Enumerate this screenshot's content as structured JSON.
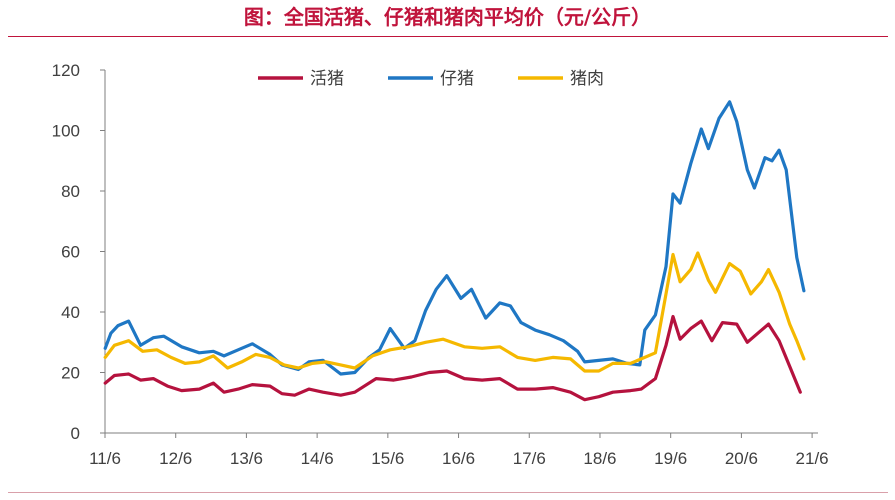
{
  "title": "图：全国活猪、仔猪和猪肉平均价（元/公斤）",
  "colors": {
    "title": "#c0143c",
    "live_hog": "#b5123e",
    "piglet": "#1f77c4",
    "pork": "#f5b800"
  },
  "chart_data": {
    "type": "line",
    "ylim": [
      0,
      120
    ],
    "yticks": [
      "0",
      "20",
      "40",
      "60",
      "80",
      "100",
      "120"
    ],
    "xlim": [
      2011.4167,
      2021.5
    ],
    "xticks": [
      "11/6",
      "12/6",
      "13/6",
      "14/6",
      "15/6",
      "16/6",
      "17/6",
      "18/6",
      "19/6",
      "20/6",
      "21/6"
    ],
    "grid": false,
    "legend_position": "top-center",
    "series": [
      {
        "name": "活猪",
        "color": "#b5123e",
        "points": [
          [
            2011.42,
            16.5
          ],
          [
            2011.55,
            19.0
          ],
          [
            2011.75,
            19.5
          ],
          [
            2011.92,
            17.5
          ],
          [
            2012.1,
            18.0
          ],
          [
            2012.3,
            15.5
          ],
          [
            2012.5,
            14.0
          ],
          [
            2012.75,
            14.5
          ],
          [
            2012.95,
            16.5
          ],
          [
            2013.1,
            13.5
          ],
          [
            2013.3,
            14.5
          ],
          [
            2013.5,
            16.0
          ],
          [
            2013.75,
            15.5
          ],
          [
            2013.92,
            13.0
          ],
          [
            2014.1,
            12.5
          ],
          [
            2014.3,
            14.5
          ],
          [
            2014.5,
            13.5
          ],
          [
            2014.75,
            12.5
          ],
          [
            2014.95,
            13.5
          ],
          [
            2015.25,
            18.0
          ],
          [
            2015.5,
            17.5
          ],
          [
            2015.75,
            18.5
          ],
          [
            2016.0,
            20.0
          ],
          [
            2016.25,
            20.5
          ],
          [
            2016.5,
            18.0
          ],
          [
            2016.75,
            17.5
          ],
          [
            2017.0,
            18.0
          ],
          [
            2017.25,
            14.5
          ],
          [
            2017.5,
            14.5
          ],
          [
            2017.75,
            15.0
          ],
          [
            2018.0,
            13.5
          ],
          [
            2018.2,
            11.0
          ],
          [
            2018.4,
            12.0
          ],
          [
            2018.6,
            13.5
          ],
          [
            2018.85,
            14.0
          ],
          [
            2019.0,
            14.5
          ],
          [
            2019.2,
            18.0
          ],
          [
            2019.35,
            29.0
          ],
          [
            2019.45,
            38.5
          ],
          [
            2019.55,
            31.0
          ],
          [
            2019.7,
            34.5
          ],
          [
            2019.85,
            37.0
          ],
          [
            2020.0,
            30.5
          ],
          [
            2020.15,
            36.5
          ],
          [
            2020.35,
            36.0
          ],
          [
            2020.5,
            30.0
          ],
          [
            2020.65,
            33.0
          ],
          [
            2020.8,
            36.0
          ],
          [
            2020.95,
            30.5
          ],
          [
            2021.1,
            22.0
          ],
          [
            2021.25,
            13.5
          ]
        ]
      },
      {
        "name": "仔猪",
        "color": "#1f77c4",
        "points": [
          [
            2011.42,
            28.0
          ],
          [
            2011.5,
            33.0
          ],
          [
            2011.6,
            35.5
          ],
          [
            2011.75,
            37.0
          ],
          [
            2011.92,
            29.0
          ],
          [
            2012.1,
            31.5
          ],
          [
            2012.25,
            32.0
          ],
          [
            2012.5,
            28.5
          ],
          [
            2012.75,
            26.5
          ],
          [
            2012.95,
            27.0
          ],
          [
            2013.1,
            25.5
          ],
          [
            2013.3,
            27.5
          ],
          [
            2013.5,
            29.5
          ],
          [
            2013.75,
            26.0
          ],
          [
            2013.92,
            22.5
          ],
          [
            2014.15,
            21.0
          ],
          [
            2014.3,
            23.5
          ],
          [
            2014.5,
            24.0
          ],
          [
            2014.75,
            19.5
          ],
          [
            2014.95,
            20.0
          ],
          [
            2015.15,
            25.0
          ],
          [
            2015.3,
            27.5
          ],
          [
            2015.45,
            34.5
          ],
          [
            2015.65,
            28.0
          ],
          [
            2015.8,
            30.5
          ],
          [
            2015.95,
            40.5
          ],
          [
            2016.1,
            47.5
          ],
          [
            2016.25,
            52.0
          ],
          [
            2016.45,
            44.5
          ],
          [
            2016.6,
            47.5
          ],
          [
            2016.8,
            38.0
          ],
          [
            2017.0,
            43.0
          ],
          [
            2017.15,
            42.0
          ],
          [
            2017.3,
            36.5
          ],
          [
            2017.5,
            34.0
          ],
          [
            2017.7,
            32.5
          ],
          [
            2017.9,
            30.5
          ],
          [
            2018.1,
            27.0
          ],
          [
            2018.2,
            23.5
          ],
          [
            2018.4,
            24.0
          ],
          [
            2018.6,
            24.5
          ],
          [
            2018.8,
            23.0
          ],
          [
            2018.98,
            22.5
          ],
          [
            2019.05,
            34.0
          ],
          [
            2019.2,
            39.0
          ],
          [
            2019.35,
            55.0
          ],
          [
            2019.45,
            79.0
          ],
          [
            2019.55,
            76.0
          ],
          [
            2019.7,
            89.0
          ],
          [
            2019.85,
            100.5
          ],
          [
            2019.95,
            94.0
          ],
          [
            2020.1,
            104.0
          ],
          [
            2020.25,
            109.5
          ],
          [
            2020.35,
            103.0
          ],
          [
            2020.5,
            87.0
          ],
          [
            2020.6,
            81.0
          ],
          [
            2020.75,
            91.0
          ],
          [
            2020.85,
            90.0
          ],
          [
            2020.95,
            93.5
          ],
          [
            2021.05,
            87.0
          ],
          [
            2021.2,
            58.0
          ],
          [
            2021.3,
            47.0
          ]
        ]
      },
      {
        "name": "猪肉",
        "color": "#f5b800",
        "points": [
          [
            2011.42,
            25.0
          ],
          [
            2011.55,
            29.0
          ],
          [
            2011.75,
            30.5
          ],
          [
            2011.95,
            27.0
          ],
          [
            2012.15,
            27.5
          ],
          [
            2012.35,
            25.0
          ],
          [
            2012.55,
            23.0
          ],
          [
            2012.75,
            23.5
          ],
          [
            2012.95,
            25.5
          ],
          [
            2013.15,
            21.5
          ],
          [
            2013.35,
            23.5
          ],
          [
            2013.55,
            26.0
          ],
          [
            2013.75,
            25.0
          ],
          [
            2013.95,
            22.5
          ],
          [
            2014.15,
            21.5
          ],
          [
            2014.35,
            23.0
          ],
          [
            2014.55,
            23.5
          ],
          [
            2014.75,
            22.5
          ],
          [
            2014.95,
            21.5
          ],
          [
            2015.2,
            25.5
          ],
          [
            2015.45,
            27.5
          ],
          [
            2015.7,
            28.5
          ],
          [
            2015.95,
            30.0
          ],
          [
            2016.2,
            31.0
          ],
          [
            2016.5,
            28.5
          ],
          [
            2016.75,
            28.0
          ],
          [
            2017.0,
            28.5
          ],
          [
            2017.25,
            25.0
          ],
          [
            2017.5,
            24.0
          ],
          [
            2017.75,
            25.0
          ],
          [
            2018.0,
            24.5
          ],
          [
            2018.2,
            20.5
          ],
          [
            2018.4,
            20.5
          ],
          [
            2018.6,
            23.0
          ],
          [
            2018.85,
            23.0
          ],
          [
            2019.0,
            24.5
          ],
          [
            2019.2,
            26.5
          ],
          [
            2019.35,
            46.0
          ],
          [
            2019.45,
            59.0
          ],
          [
            2019.55,
            50.0
          ],
          [
            2019.7,
            54.0
          ],
          [
            2019.8,
            59.5
          ],
          [
            2019.95,
            50.5
          ],
          [
            2020.05,
            46.5
          ],
          [
            2020.25,
            56.0
          ],
          [
            2020.4,
            53.5
          ],
          [
            2020.55,
            46.0
          ],
          [
            2020.7,
            50.0
          ],
          [
            2020.8,
            54.0
          ],
          [
            2020.95,
            46.5
          ],
          [
            2021.1,
            36.0
          ],
          [
            2021.2,
            30.5
          ],
          [
            2021.3,
            24.5
          ]
        ]
      }
    ]
  }
}
